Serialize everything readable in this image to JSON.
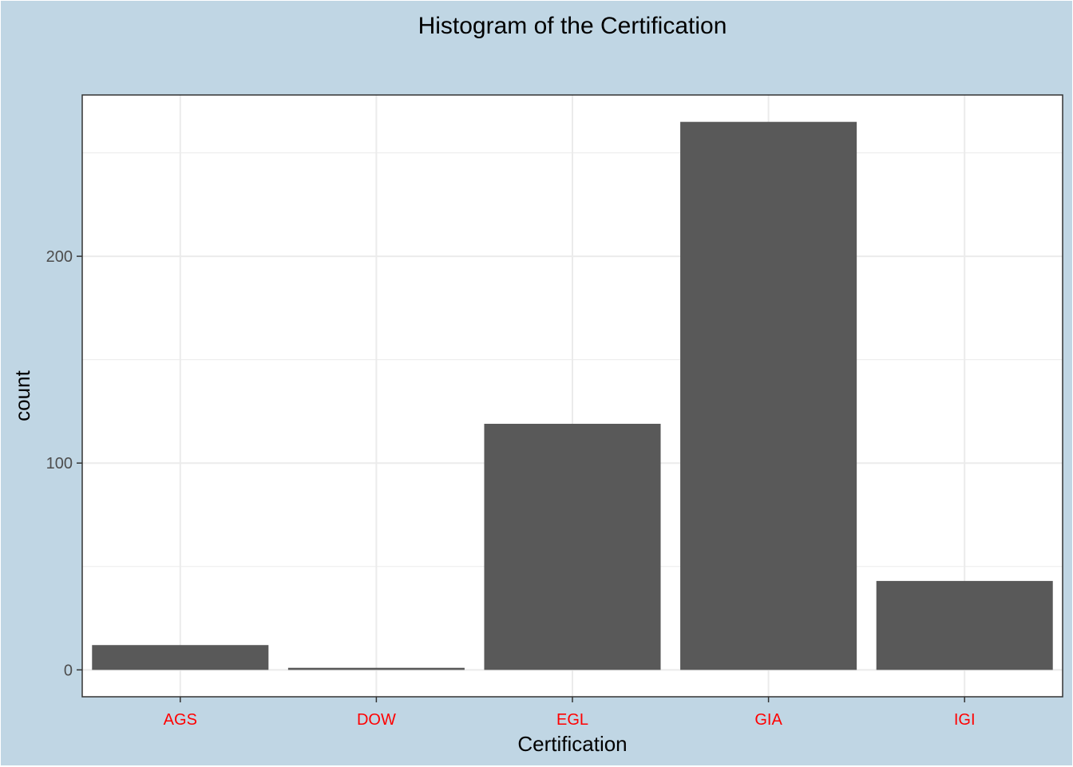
{
  "chart_data": {
    "type": "bar",
    "title": "Histogram of the Certification",
    "xlabel": "Certification",
    "ylabel": "count",
    "categories": [
      "AGS",
      "DOW",
      "EGL",
      "GIA",
      "IGI"
    ],
    "values": [
      12,
      1,
      119,
      265,
      43
    ],
    "ylim": [
      -13,
      278
    ],
    "yticks": [
      0,
      100,
      200
    ],
    "ytick_labels": [
      "0",
      "100",
      "200"
    ],
    "minor_yticks": [
      50,
      150,
      250
    ],
    "grid": true,
    "legend": "none",
    "colors": {
      "background": "#c0d6e4",
      "panel": "#ffffff",
      "bar": "#595959",
      "grid": "#ebebeb",
      "xtick_label": "#ff0000",
      "ytick_label": "#4d4d4d",
      "axis_line": "#333333"
    }
  }
}
